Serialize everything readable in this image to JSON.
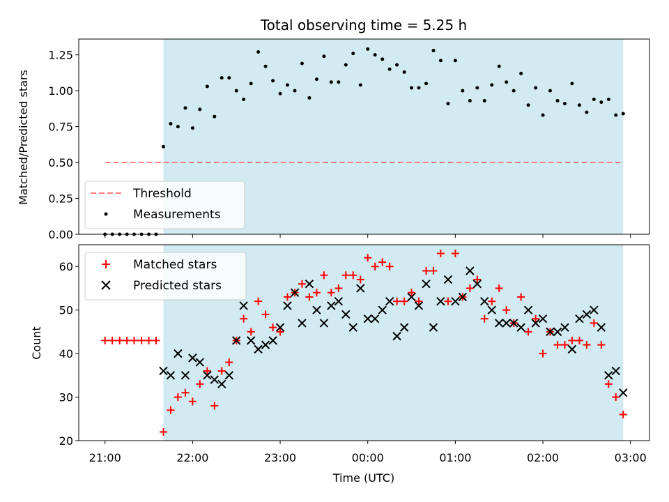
{
  "chart_data": [
    {
      "type": "scatter",
      "title": "Total observing time = 5.25 h",
      "ylabel": "Matched/Predicted stars",
      "xlabel": "",
      "ylim": [
        0,
        1.36
      ],
      "yticks": [
        0,
        0.25,
        0.5,
        0.75,
        1.0,
        1.25
      ],
      "ytick_labels": [
        "0.00",
        "0.25",
        "0.50",
        "0.75",
        "1.00",
        "1.25"
      ],
      "x_axis": "time of day (hours after 21:00 UTC, ticks shared with lower panel)",
      "shaded_span": [
        0.667,
        5.917
      ],
      "shaded_color": "#add8e6",
      "grid": false,
      "legend_position": "lower-left",
      "threshold": {
        "name": "Threshold",
        "x": [
          0,
          5.917
        ],
        "y": 0.5,
        "color": "#ff7f7f",
        "style": "dashed"
      },
      "series": [
        {
          "name": "Measurements",
          "color": "#000000",
          "marker": "dot",
          "points": [
            [
              0,
              0
            ],
            [
              0.083,
              0
            ],
            [
              0.167,
              0
            ],
            [
              0.25,
              0
            ],
            [
              0.333,
              0
            ],
            [
              0.417,
              0
            ],
            [
              0.5,
              0
            ],
            [
              0.583,
              0
            ],
            [
              0.667,
              0.61
            ],
            [
              0.75,
              0.77
            ],
            [
              0.833,
              0.75
            ],
            [
              0.917,
              0.88
            ],
            [
              1.0,
              0.74
            ],
            [
              1.083,
              0.87
            ],
            [
              1.167,
              1.03
            ],
            [
              1.25,
              0.82
            ],
            [
              1.333,
              1.09
            ],
            [
              1.417,
              1.09
            ],
            [
              1.5,
              1.0
            ],
            [
              1.583,
              0.94
            ],
            [
              1.667,
              1.05
            ],
            [
              1.75,
              1.27
            ],
            [
              1.833,
              1.17
            ],
            [
              1.917,
              1.07
            ],
            [
              2.0,
              0.98
            ],
            [
              2.083,
              1.04
            ],
            [
              2.167,
              1.0
            ],
            [
              2.25,
              1.19
            ],
            [
              2.333,
              0.95
            ],
            [
              2.417,
              1.08
            ],
            [
              2.5,
              1.24
            ],
            [
              2.583,
              1.06
            ],
            [
              2.667,
              1.06
            ],
            [
              2.75,
              1.18
            ],
            [
              2.833,
              1.26
            ],
            [
              2.917,
              1.04
            ],
            [
              3.0,
              1.29
            ],
            [
              3.083,
              1.25
            ],
            [
              3.167,
              1.22
            ],
            [
              3.25,
              1.15
            ],
            [
              3.333,
              1.18
            ],
            [
              3.417,
              1.13
            ],
            [
              3.5,
              1.02
            ],
            [
              3.583,
              1.02
            ],
            [
              3.667,
              1.05
            ],
            [
              3.75,
              1.28
            ],
            [
              3.833,
              1.21
            ],
            [
              3.917,
              0.91
            ],
            [
              4.0,
              1.21
            ],
            [
              4.083,
              1.0
            ],
            [
              4.167,
              0.93
            ],
            [
              4.25,
              1.02
            ],
            [
              4.333,
              0.93
            ],
            [
              4.417,
              1.04
            ],
            [
              4.5,
              1.17
            ],
            [
              4.583,
              1.06
            ],
            [
              4.667,
              1.0
            ],
            [
              4.75,
              1.12
            ],
            [
              4.833,
              0.9
            ],
            [
              4.917,
              1.02
            ],
            [
              5.0,
              0.83
            ],
            [
              5.083,
              1.0
            ],
            [
              5.167,
              0.93
            ],
            [
              5.25,
              0.91
            ],
            [
              5.333,
              1.05
            ],
            [
              5.417,
              0.9
            ],
            [
              5.5,
              0.85
            ],
            [
              5.583,
              0.94
            ],
            [
              5.667,
              0.92
            ],
            [
              5.75,
              0.94
            ],
            [
              5.833,
              0.83
            ],
            [
              5.917,
              0.84
            ]
          ]
        }
      ]
    },
    {
      "type": "scatter",
      "title": "",
      "xlabel": "Time (UTC)",
      "ylabel": "Count",
      "ylim": [
        20,
        65
      ],
      "yticks": [
        20,
        30,
        40,
        50,
        60
      ],
      "xticks": [
        0,
        1,
        2,
        3,
        4,
        5,
        6
      ],
      "xtick_labels": [
        "21:00",
        "22:00",
        "23:00",
        "00:00",
        "01:00",
        "02:00",
        "03:00"
      ],
      "shaded_span": [
        0.667,
        5.917
      ],
      "shaded_color": "#add8e6",
      "grid": false,
      "legend_position": "top-left",
      "series": [
        {
          "name": "Matched stars",
          "color": "#ff0000",
          "marker": "plus",
          "points": [
            [
              0,
              43
            ],
            [
              0.083,
              43
            ],
            [
              0.167,
              43
            ],
            [
              0.25,
              43
            ],
            [
              0.333,
              43
            ],
            [
              0.417,
              43
            ],
            [
              0.5,
              43
            ],
            [
              0.583,
              43
            ],
            [
              0.667,
              22
            ],
            [
              0.75,
              27
            ],
            [
              0.833,
              30
            ],
            [
              0.917,
              31
            ],
            [
              1.0,
              29
            ],
            [
              1.083,
              33
            ],
            [
              1.167,
              36
            ],
            [
              1.25,
              28
            ],
            [
              1.333,
              36
            ],
            [
              1.417,
              38
            ],
            [
              1.5,
              43
            ],
            [
              1.583,
              48
            ],
            [
              1.667,
              45
            ],
            [
              1.75,
              52
            ],
            [
              1.833,
              49
            ],
            [
              1.917,
              46
            ],
            [
              2.0,
              45
            ],
            [
              2.083,
              53
            ],
            [
              2.167,
              54
            ],
            [
              2.25,
              56
            ],
            [
              2.333,
              53
            ],
            [
              2.417,
              54
            ],
            [
              2.5,
              58
            ],
            [
              2.583,
              54
            ],
            [
              2.667,
              55
            ],
            [
              2.75,
              58
            ],
            [
              2.833,
              58
            ],
            [
              2.917,
              57
            ],
            [
              3.0,
              62
            ],
            [
              3.083,
              60
            ],
            [
              3.167,
              61
            ],
            [
              3.25,
              60
            ],
            [
              3.333,
              52
            ],
            [
              3.417,
              52
            ],
            [
              3.5,
              54
            ],
            [
              3.583,
              52
            ],
            [
              3.667,
              59
            ],
            [
              3.75,
              59
            ],
            [
              3.833,
              63
            ],
            [
              3.917,
              52
            ],
            [
              4.0,
              63
            ],
            [
              4.083,
              53
            ],
            [
              4.167,
              55
            ],
            [
              4.25,
              57
            ],
            [
              4.333,
              48
            ],
            [
              4.417,
              52
            ],
            [
              4.5,
              55
            ],
            [
              4.583,
              50
            ],
            [
              4.667,
              47
            ],
            [
              4.75,
              53
            ],
            [
              4.833,
              45
            ],
            [
              4.917,
              48
            ],
            [
              5.0,
              40
            ],
            [
              5.083,
              45
            ],
            [
              5.167,
              42
            ],
            [
              5.25,
              42
            ],
            [
              5.333,
              43
            ],
            [
              5.417,
              43
            ],
            [
              5.5,
              42
            ],
            [
              5.583,
              47
            ],
            [
              5.667,
              42
            ],
            [
              5.75,
              33
            ],
            [
              5.833,
              30
            ],
            [
              5.917,
              26
            ]
          ]
        },
        {
          "name": "Predicted stars",
          "color": "#000000",
          "marker": "cross",
          "points": [
            [
              0.667,
              36
            ],
            [
              0.75,
              35
            ],
            [
              0.833,
              40
            ],
            [
              0.917,
              35
            ],
            [
              1.0,
              39
            ],
            [
              1.083,
              38
            ],
            [
              1.167,
              35
            ],
            [
              1.25,
              34
            ],
            [
              1.333,
              33
            ],
            [
              1.417,
              35
            ],
            [
              1.5,
              43
            ],
            [
              1.583,
              51
            ],
            [
              1.667,
              43
            ],
            [
              1.75,
              41
            ],
            [
              1.833,
              42
            ],
            [
              1.917,
              43
            ],
            [
              2.0,
              46
            ],
            [
              2.083,
              51
            ],
            [
              2.167,
              54
            ],
            [
              2.25,
              47
            ],
            [
              2.333,
              56
            ],
            [
              2.417,
              50
            ],
            [
              2.5,
              47
            ],
            [
              2.583,
              51
            ],
            [
              2.667,
              52
            ],
            [
              2.75,
              49
            ],
            [
              2.833,
              46
            ],
            [
              2.917,
              55
            ],
            [
              3.0,
              48
            ],
            [
              3.083,
              48
            ],
            [
              3.167,
              50
            ],
            [
              3.25,
              52
            ],
            [
              3.333,
              44
            ],
            [
              3.417,
              46
            ],
            [
              3.5,
              53
            ],
            [
              3.583,
              51
            ],
            [
              3.667,
              56
            ],
            [
              3.75,
              46
            ],
            [
              3.833,
              52
            ],
            [
              3.917,
              57
            ],
            [
              4.0,
              52
            ],
            [
              4.083,
              53
            ],
            [
              4.167,
              59
            ],
            [
              4.25,
              56
            ],
            [
              4.333,
              52
            ],
            [
              4.417,
              50
            ],
            [
              4.5,
              47
            ],
            [
              4.583,
              47
            ],
            [
              4.667,
              47
            ],
            [
              4.75,
              46
            ],
            [
              4.833,
              50
            ],
            [
              4.917,
              47
            ],
            [
              5.0,
              48
            ],
            [
              5.083,
              45
            ],
            [
              5.167,
              45
            ],
            [
              5.25,
              46
            ],
            [
              5.333,
              41
            ],
            [
              5.417,
              48
            ],
            [
              5.5,
              49
            ],
            [
              5.583,
              50
            ],
            [
              5.667,
              46
            ],
            [
              5.75,
              35
            ],
            [
              5.833,
              36
            ],
            [
              5.917,
              31
            ]
          ]
        }
      ]
    }
  ]
}
